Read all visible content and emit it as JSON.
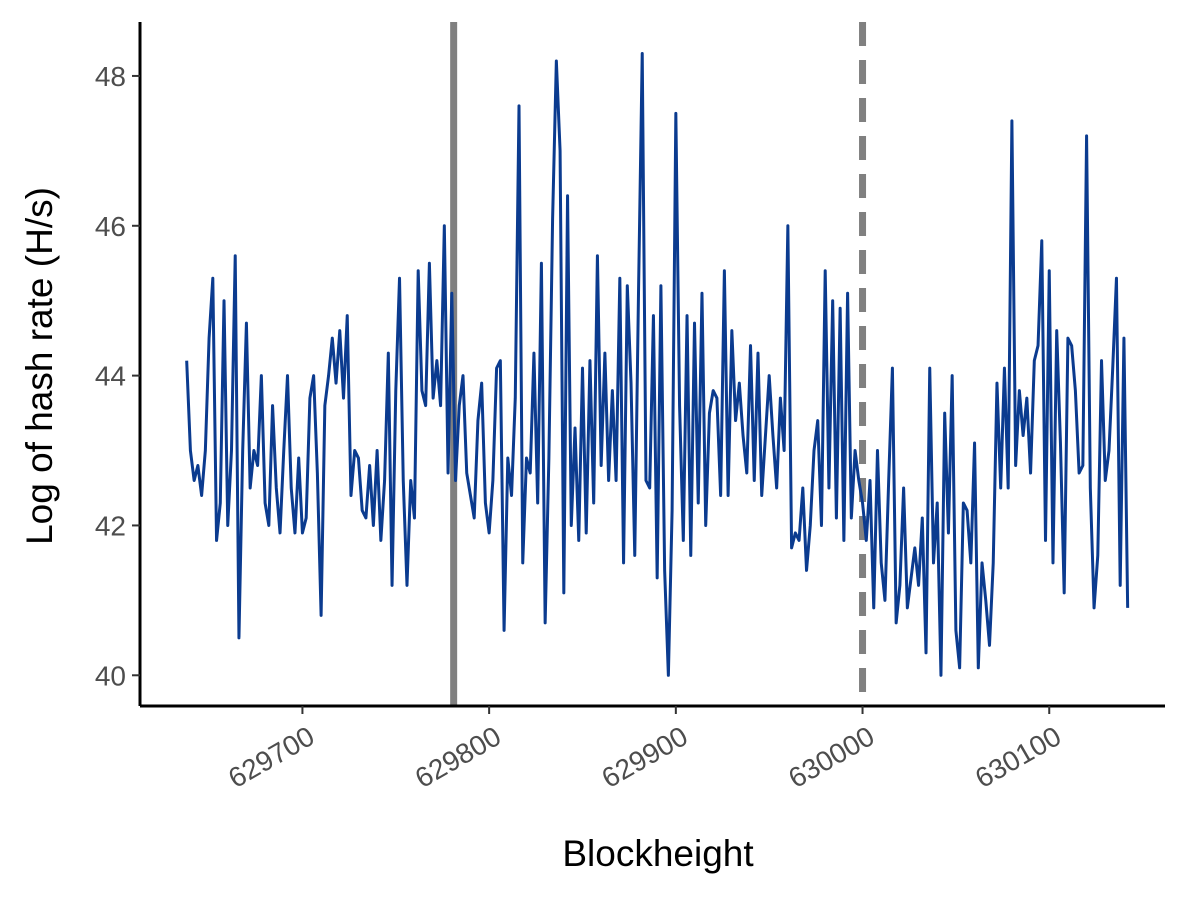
{
  "chart_data": {
    "type": "line",
    "x_label": "Blockheight",
    "y_label": "Log of hash rate (H/s)",
    "x": [
      629638,
      629640,
      629642,
      629644,
      629646,
      629648,
      629650,
      629652,
      629654,
      629656,
      629658,
      629660,
      629662,
      629664,
      629666,
      629668,
      629670,
      629672,
      629674,
      629676,
      629678,
      629680,
      629682,
      629684,
      629686,
      629688,
      629690,
      629692,
      629694,
      629696,
      629698,
      629700,
      629702,
      629704,
      629706,
      629708,
      629710,
      629712,
      629714,
      629716,
      629718,
      629720,
      629722,
      629724,
      629726,
      629728,
      629730,
      629732,
      629734,
      629736,
      629738,
      629740,
      629742,
      629744,
      629746,
      629748,
      629750,
      629752,
      629754,
      629756,
      629758,
      629760,
      629762,
      629764,
      629766,
      629768,
      629770,
      629772,
      629774,
      629776,
      629778,
      629780,
      629782,
      629784,
      629786,
      629788,
      629790,
      629792,
      629794,
      629796,
      629798,
      629800,
      629802,
      629804,
      629806,
      629808,
      629810,
      629812,
      629814,
      629816,
      629818,
      629820,
      629822,
      629824,
      629826,
      629828,
      629830,
      629832,
      629834,
      629836,
      629838,
      629840,
      629842,
      629844,
      629846,
      629848,
      629850,
      629852,
      629854,
      629856,
      629858,
      629860,
      629862,
      629864,
      629866,
      629868,
      629870,
      629872,
      629874,
      629876,
      629878,
      629880,
      629882,
      629884,
      629886,
      629888,
      629890,
      629892,
      629894,
      629896,
      629898,
      629900,
      629902,
      629904,
      629906,
      629908,
      629910,
      629912,
      629914,
      629916,
      629918,
      629920,
      629922,
      629924,
      629926,
      629928,
      629930,
      629932,
      629934,
      629936,
      629938,
      629940,
      629942,
      629944,
      629946,
      629948,
      629950,
      629952,
      629954,
      629956,
      629958,
      629960,
      629962,
      629964,
      629966,
      629968,
      629970,
      629972,
      629974,
      629976,
      629978,
      629980,
      629982,
      629984,
      629986,
      629988,
      629990,
      629992,
      629994,
      629996,
      629998,
      630000,
      630002,
      630004,
      630006,
      630008,
      630010,
      630012,
      630014,
      630016,
      630018,
      630020,
      630022,
      630024,
      630026,
      630028,
      630030,
      630032,
      630034,
      630036,
      630038,
      630040,
      630042,
      630044,
      630046,
      630048,
      630050,
      630052,
      630054,
      630056,
      630058,
      630060,
      630062,
      630064,
      630066,
      630068,
      630070,
      630072,
      630074,
      630076,
      630078,
      630080,
      630082,
      630084,
      630086,
      630088,
      630090,
      630092,
      630094,
      630096,
      630098,
      630100,
      630102,
      630104,
      630106,
      630108,
      630110,
      630112,
      630114,
      630116,
      630118,
      630120,
      630122,
      630124,
      630126,
      630128,
      630130,
      630132,
      630134,
      630136,
      630138,
      630140,
      630142
    ],
    "values": [
      44.2,
      43,
      42.6,
      42.8,
      42.4,
      43,
      44.5,
      45.3,
      41.8,
      42.3,
      45.0,
      42.0,
      43,
      45.6,
      40.5,
      43,
      44.7,
      42.5,
      43,
      42.8,
      44,
      42.3,
      42,
      43.6,
      42.5,
      41.9,
      43,
      44,
      42.5,
      41.9,
      42.9,
      41.9,
      42.1,
      43.7,
      44,
      42.7,
      40.8,
      43.6,
      44,
      44.5,
      43.9,
      44.6,
      43.7,
      44.8,
      42.4,
      43,
      42.9,
      42.2,
      42.1,
      42.8,
      42,
      43,
      41.8,
      42.6,
      44.3,
      41.2,
      43.8,
      45.3,
      42.6,
      41.2,
      42.6,
      42.1,
      45.4,
      43.8,
      43.6,
      45.5,
      43.7,
      44.2,
      43.6,
      46,
      42.7,
      45.1,
      42.6,
      43.6,
      44,
      42.7,
      42.4,
      42.1,
      43.4,
      43.9,
      42.3,
      41.9,
      42.6,
      44.1,
      44.2,
      40.6,
      42.9,
      42.4,
      43.7,
      47.6,
      41.5,
      42.9,
      42.7,
      44.3,
      42.3,
      45.5,
      40.7,
      42.9,
      46.1,
      48.2,
      47,
      41.1,
      46.4,
      42,
      43.3,
      41.8,
      44.1,
      41.9,
      44.2,
      42.3,
      45.6,
      42.8,
      44.3,
      42.6,
      43.8,
      42.6,
      45.3,
      41.5,
      45.2,
      43.9,
      41.6,
      45.1,
      48.3,
      42.6,
      42.5,
      44.8,
      41.3,
      45.2,
      41.4,
      40,
      42.2,
      47.5,
      43.6,
      41.8,
      44.8,
      41.6,
      44.7,
      42.3,
      45.1,
      42,
      43.5,
      43.8,
      43.7,
      42.4,
      45.4,
      42.4,
      44.6,
      43.4,
      43.9,
      43.2,
      42.7,
      44.4,
      42.6,
      44.3,
      42.4,
      43.2,
      44,
      43.2,
      42.5,
      43.7,
      43,
      46,
      41.7,
      41.9,
      41.8,
      42.5,
      41.4,
      42,
      43,
      43.4,
      42,
      45.4,
      42.5,
      45,
      42.1,
      44.9,
      41.8,
      45.1,
      42.1,
      43,
      42.6,
      42.3,
      41.8,
      42.6,
      40.9,
      43,
      41.5,
      41,
      42.6,
      44.1,
      40.7,
      41.2,
      42.5,
      40.9,
      41.3,
      41.7,
      41.2,
      42.1,
      40.3,
      44.1,
      41.5,
      42.3,
      40,
      43.5,
      41.9,
      44,
      40.6,
      40.1,
      42.3,
      42.2,
      41.5,
      43.1,
      40.1,
      41.5,
      41,
      40.4,
      41.5,
      43.9,
      42.5,
      44.1,
      42.5,
      47.4,
      42.8,
      43.8,
      43.2,
      43.7,
      42.7,
      44.2,
      44.4,
      45.8,
      41.8,
      45.4,
      41.5,
      44.6,
      43.1,
      41.1,
      44.5,
      44.4,
      43.8,
      42.7,
      42.8,
      47.2,
      42.5,
      40.9,
      41.6,
      44.2,
      42.6,
      43,
      44.1,
      45.3,
      41.2,
      44.5,
      40.9
    ],
    "color": "#0b3b8f",
    "vlines": [
      {
        "x": 629781,
        "style": "solid"
      },
      {
        "x": 630000,
        "style": "dashed"
      }
    ],
    "vline_color": "#808080",
    "xlim": [
      629613,
      630162
    ],
    "ylim": [
      39.59,
      48.72
    ],
    "xticks": [
      629700,
      629800,
      629900,
      630000,
      630100
    ],
    "yticks": [
      40,
      42,
      44,
      46,
      48
    ],
    "grid": false
  }
}
